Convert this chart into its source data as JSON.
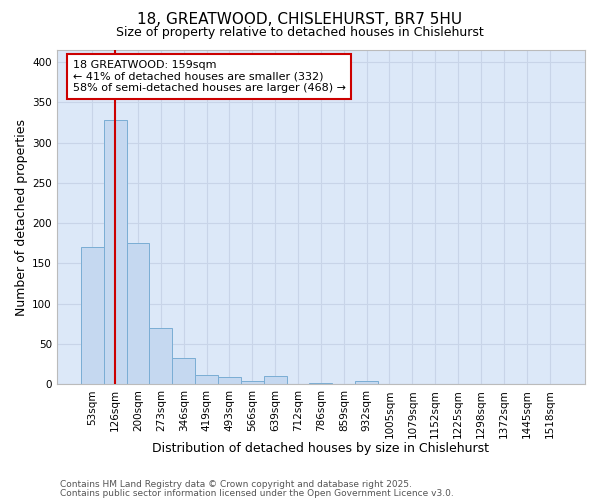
{
  "title1": "18, GREATWOOD, CHISLEHURST, BR7 5HU",
  "title2": "Size of property relative to detached houses in Chislehurst",
  "xlabel": "Distribution of detached houses by size in Chislehurst",
  "ylabel": "Number of detached properties",
  "categories": [
    "53sqm",
    "126sqm",
    "200sqm",
    "273sqm",
    "346sqm",
    "419sqm",
    "493sqm",
    "566sqm",
    "639sqm",
    "712sqm",
    "786sqm",
    "859sqm",
    "932sqm",
    "1005sqm",
    "1079sqm",
    "1152sqm",
    "1225sqm",
    "1298sqm",
    "1372sqm",
    "1445sqm",
    "1518sqm"
  ],
  "values": [
    170,
    328,
    175,
    70,
    33,
    12,
    9,
    4,
    10,
    0,
    2,
    0,
    4,
    0,
    0,
    0,
    0,
    0,
    0,
    0,
    0
  ],
  "bar_color": "#c5d8f0",
  "bar_edgecolor": "#7aadd4",
  "vline_x": 1.0,
  "vline_color": "#cc0000",
  "annotation_text": "18 GREATWOOD: 159sqm\n← 41% of detached houses are smaller (332)\n58% of semi-detached houses are larger (468) →",
  "annotation_box_color": "white",
  "annotation_box_edgecolor": "#cc0000",
  "ylim": [
    0,
    415
  ],
  "yticks": [
    0,
    50,
    100,
    150,
    200,
    250,
    300,
    350,
    400
  ],
  "grid_color": "#c8d4e8",
  "background_color": "#dce8f8",
  "footer1": "Contains HM Land Registry data © Crown copyright and database right 2025.",
  "footer2": "Contains public sector information licensed under the Open Government Licence v3.0.",
  "title_fontsize": 11,
  "subtitle_fontsize": 9,
  "xlabel_fontsize": 9,
  "ylabel_fontsize": 9,
  "tick_fontsize": 7.5,
  "annotation_fontsize": 8,
  "footer_fontsize": 6.5
}
